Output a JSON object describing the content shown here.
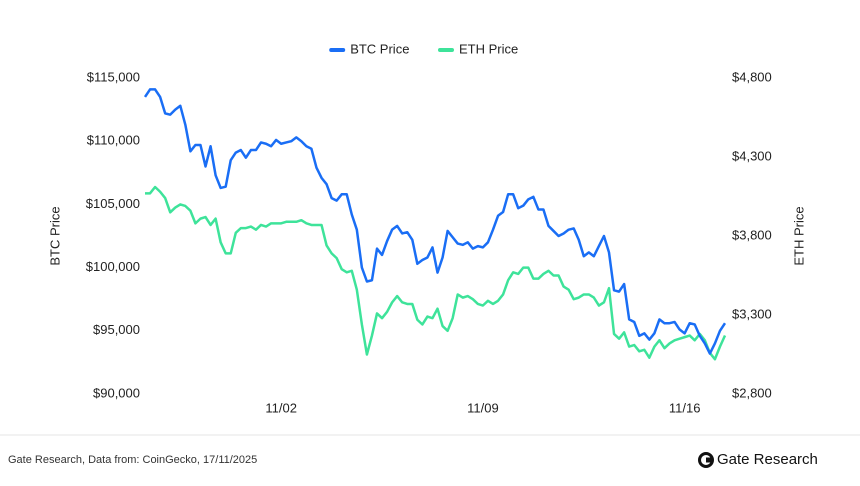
{
  "chart_data": {
    "type": "line",
    "categories": [
      null,
      null,
      null,
      null,
      null,
      null,
      null,
      null,
      null,
      null,
      null,
      null,
      null,
      null,
      null,
      null,
      null,
      null,
      null,
      null,
      null,
      null,
      null,
      null,
      null,
      null,
      null,
      "11/02",
      null,
      null,
      null,
      null,
      null,
      null,
      null,
      null,
      null,
      null,
      null,
      null,
      null,
      null,
      null,
      null,
      null,
      null,
      null,
      null,
      null,
      null,
      null,
      null,
      null,
      null,
      null,
      null,
      null,
      null,
      null,
      null,
      null,
      null,
      null,
      null,
      null,
      null,
      null,
      "11/09",
      null,
      null,
      null,
      null,
      null,
      null,
      null,
      null,
      null,
      null,
      null,
      null,
      null,
      null,
      null,
      null,
      null,
      null,
      null,
      null,
      null,
      null,
      null,
      null,
      null,
      null,
      null,
      null,
      null,
      null,
      null,
      null,
      null,
      null,
      null,
      null,
      null,
      null,
      null,
      "11/16",
      null,
      null,
      null,
      null,
      null,
      null,
      null,
      null
    ],
    "series": [
      {
        "name": "BTC Price",
        "color": "#1a6ef5",
        "values": [
          113500,
          114100,
          114100,
          113500,
          112200,
          112100,
          112500,
          112800,
          111300,
          109200,
          109700,
          109700,
          108000,
          109600,
          107300,
          106300,
          106400,
          108500,
          109100,
          109300,
          108700,
          109300,
          109300,
          109900,
          109800,
          109600,
          110100,
          109800,
          109900,
          110000,
          110300,
          110000,
          109600,
          109400,
          107900,
          107100,
          106600,
          105500,
          105300,
          105800,
          105800,
          104200,
          103000,
          100000,
          98900,
          99000,
          101500,
          101000,
          102100,
          103000,
          103300,
          102700,
          102800,
          102200,
          100300,
          100600,
          100800,
          101600,
          99600,
          100800,
          102900,
          102400,
          101900,
          101800,
          102000,
          101500,
          101700,
          101600,
          102000,
          103000,
          104100,
          104400,
          105800,
          105800,
          104700,
          104900,
          105400,
          105600,
          104600,
          104600,
          103300,
          102900,
          102500,
          102700,
          103000,
          103100,
          102200,
          100900,
          101200,
          100900,
          101700,
          102500,
          101200,
          98200,
          98100,
          98700,
          95900,
          95700,
          94600,
          94800,
          94300,
          94800,
          95900,
          95600,
          95600,
          95700,
          95100,
          94800,
          95600,
          95500,
          94600,
          94000,
          93200,
          94000,
          95000,
          95600
        ]
      },
      {
        "name": "ETH Price",
        "color": "#3ee39a",
        "axis": "y2",
        "values": [
          4070,
          4070,
          4110,
          4080,
          4040,
          3950,
          3980,
          4000,
          3990,
          3960,
          3880,
          3910,
          3920,
          3870,
          3910,
          3760,
          3690,
          3690,
          3820,
          3850,
          3850,
          3860,
          3840,
          3870,
          3860,
          3880,
          3880,
          3880,
          3890,
          3890,
          3890,
          3900,
          3880,
          3870,
          3870,
          3870,
          3740,
          3690,
          3660,
          3590,
          3570,
          3580,
          3460,
          3240,
          3050,
          3170,
          3310,
          3280,
          3320,
          3380,
          3420,
          3380,
          3370,
          3370,
          3270,
          3240,
          3290,
          3280,
          3340,
          3230,
          3200,
          3280,
          3430,
          3410,
          3420,
          3400,
          3370,
          3360,
          3390,
          3370,
          3390,
          3430,
          3520,
          3570,
          3560,
          3600,
          3600,
          3530,
          3530,
          3560,
          3580,
          3550,
          3550,
          3480,
          3460,
          3400,
          3410,
          3430,
          3430,
          3410,
          3360,
          3380,
          3470,
          3180,
          3150,
          3190,
          3100,
          3110,
          3070,
          3080,
          3030,
          3100,
          3140,
          3090,
          3120,
          3140,
          3150,
          3160,
          3170,
          3140,
          3180,
          3140,
          3060,
          3020,
          3100,
          3170
        ]
      }
    ],
    "ylabel": "BTC Price",
    "y2label": "ETH Price",
    "ylim": [
      90000,
      115000
    ],
    "yticks": [
      {
        "value": 90000,
        "label": "$90,000"
      },
      {
        "value": 95000,
        "label": "$95,000"
      },
      {
        "value": 100000,
        "label": "$100,000"
      },
      {
        "value": 105000,
        "label": "$105,000"
      },
      {
        "value": 110000,
        "label": "$110,000"
      },
      {
        "value": 115000,
        "label": "$115,000"
      }
    ],
    "y2lim": [
      2800,
      4800
    ],
    "y2ticks": [
      {
        "value": 2800,
        "label": "$2,800"
      },
      {
        "value": 3300,
        "label": "$3,300"
      },
      {
        "value": 3800,
        "label": "$3,800"
      },
      {
        "value": 4300,
        "label": "$4,300"
      },
      {
        "value": 4800,
        "label": "$4,800"
      }
    ],
    "grid": false,
    "legend": "top"
  },
  "footer": {
    "source": "Gate Research, Data from: CoinGecko, 17/11/2025",
    "brand": "Gate Research"
  }
}
